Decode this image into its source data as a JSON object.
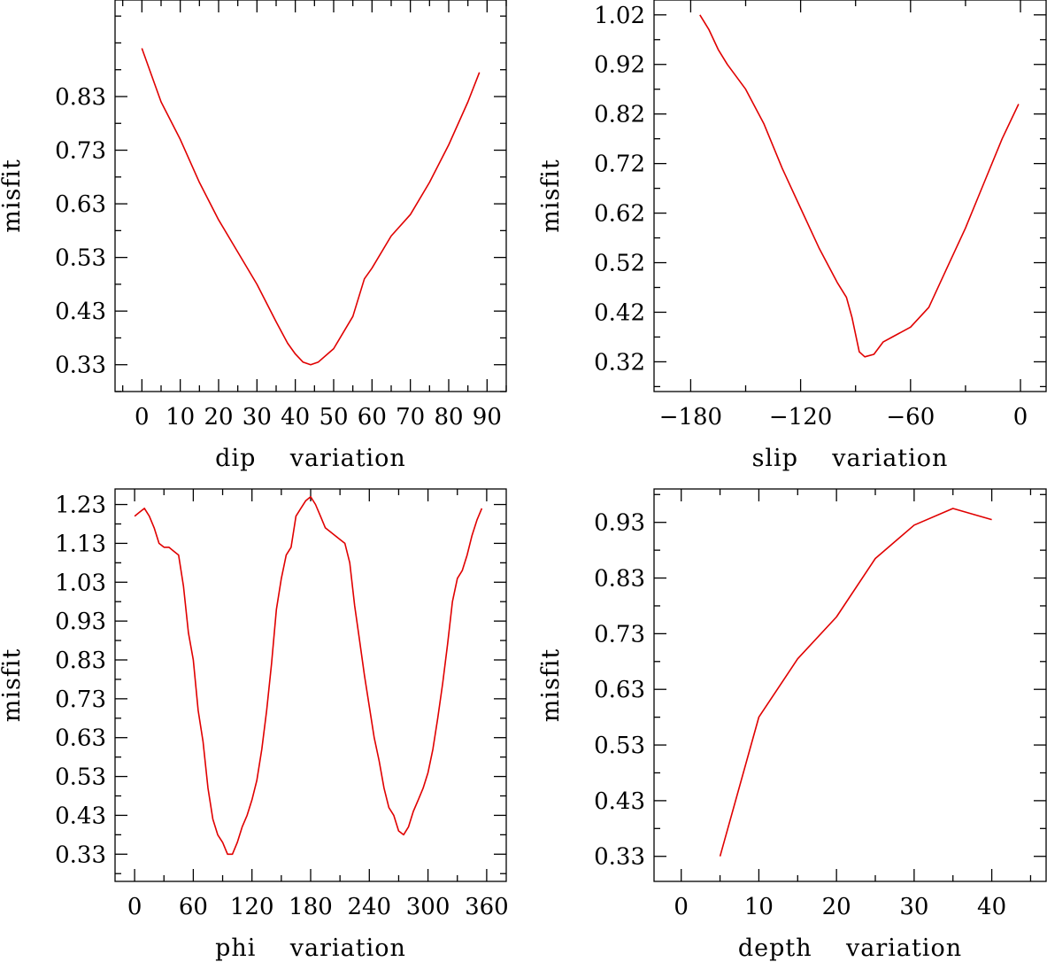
{
  "chart_data": [
    {
      "type": "line",
      "title": "",
      "xlabel": "dip    variation",
      "ylabel": "misfit",
      "xlim": [
        -7,
        95
      ],
      "ylim": [
        0.28,
        1.01
      ],
      "xticks": [
        0,
        10,
        20,
        30,
        40,
        50,
        60,
        70,
        80,
        90
      ],
      "xtick_labels": [
        "0",
        "10",
        "20",
        "30",
        "40",
        "50",
        "60",
        "70",
        "80",
        "90"
      ],
      "yticks": [
        0.33,
        0.43,
        0.53,
        0.63,
        0.73,
        0.83
      ],
      "ytick_labels": [
        "0.33",
        "0.43",
        "0.53",
        "0.63",
        "0.73",
        "0.83"
      ],
      "series": [
        {
          "name": "dip",
          "color": "#e00000",
          "x": [
            0,
            5,
            10,
            15,
            20,
            25,
            30,
            35,
            38,
            40,
            42,
            44,
            46,
            50,
            55,
            58,
            60,
            65,
            70,
            75,
            80,
            85,
            88
          ],
          "y": [
            0.92,
            0.82,
            0.75,
            0.67,
            0.6,
            0.54,
            0.48,
            0.41,
            0.37,
            0.35,
            0.335,
            0.33,
            0.335,
            0.36,
            0.42,
            0.49,
            0.51,
            0.57,
            0.61,
            0.67,
            0.74,
            0.82,
            0.875
          ]
        }
      ]
    },
    {
      "type": "line",
      "title": "",
      "xlabel": "slip    variation",
      "ylabel": "misfit",
      "xlim": [
        -200,
        14
      ],
      "ylim": [
        0.26,
        1.05
      ],
      "xticks": [
        -180,
        -120,
        -60,
        0
      ],
      "xtick_labels": [
        "−180",
        "−120",
        "−60",
        "0"
      ],
      "yticks": [
        0.32,
        0.42,
        0.52,
        0.62,
        0.72,
        0.82,
        0.92,
        1.02
      ],
      "ytick_labels": [
        "0.32",
        "0.42",
        "0.52",
        "0.62",
        "0.72",
        "0.82",
        "0.92",
        "1.02"
      ],
      "series": [
        {
          "name": "slip",
          "color": "#e00000",
          "x": [
            -175,
            -170,
            -165,
            -160,
            -150,
            -140,
            -130,
            -120,
            -110,
            -100,
            -95,
            -92,
            -88,
            -85,
            -80,
            -75,
            -70,
            -60,
            -50,
            -40,
            -30,
            -20,
            -10,
            -1
          ],
          "y": [
            1.02,
            0.99,
            0.95,
            0.92,
            0.87,
            0.8,
            0.71,
            0.63,
            0.55,
            0.48,
            0.45,
            0.41,
            0.34,
            0.33,
            0.335,
            0.36,
            0.37,
            0.39,
            0.43,
            0.51,
            0.59,
            0.68,
            0.77,
            0.84
          ]
        }
      ]
    },
    {
      "type": "line",
      "title": "",
      "xlabel": "phi    variation",
      "ylabel": "misfit",
      "xlim": [
        -20,
        380
      ],
      "ylim": [
        0.26,
        1.27
      ],
      "xticks": [
        0,
        60,
        120,
        180,
        240,
        300,
        360
      ],
      "xtick_labels": [
        "0",
        "60",
        "120",
        "180",
        "240",
        "300",
        "360"
      ],
      "yticks": [
        0.33,
        0.43,
        0.53,
        0.63,
        0.73,
        0.83,
        0.93,
        1.03,
        1.13,
        1.23
      ],
      "ytick_labels": [
        "0.33",
        "0.43",
        "0.53",
        "0.63",
        "0.73",
        "0.83",
        "0.93",
        "1.03",
        "1.13",
        "1.23"
      ],
      "series": [
        {
          "name": "phi",
          "color": "#e00000",
          "x": [
            0,
            5,
            10,
            15,
            20,
            25,
            30,
            35,
            40,
            45,
            50,
            55,
            60,
            65,
            70,
            75,
            80,
            85,
            90,
            95,
            100,
            105,
            110,
            115,
            120,
            125,
            130,
            135,
            140,
            145,
            150,
            155,
            160,
            165,
            170,
            175,
            180,
            185,
            190,
            195,
            200,
            205,
            210,
            215,
            220,
            225,
            230,
            235,
            240,
            245,
            250,
            255,
            260,
            265,
            270,
            275,
            280,
            285,
            290,
            295,
            300,
            305,
            310,
            315,
            320,
            325,
            330,
            335,
            340,
            345,
            350,
            355
          ],
          "y": [
            1.2,
            1.21,
            1.22,
            1.2,
            1.17,
            1.13,
            1.12,
            1.12,
            1.11,
            1.1,
            1.02,
            0.9,
            0.83,
            0.7,
            0.62,
            0.5,
            0.42,
            0.38,
            0.36,
            0.33,
            0.33,
            0.36,
            0.4,
            0.43,
            0.47,
            0.52,
            0.6,
            0.7,
            0.82,
            0.96,
            1.04,
            1.1,
            1.12,
            1.2,
            1.22,
            1.24,
            1.25,
            1.23,
            1.2,
            1.17,
            1.16,
            1.15,
            1.14,
            1.13,
            1.08,
            0.97,
            0.88,
            0.79,
            0.71,
            0.63,
            0.57,
            0.5,
            0.45,
            0.43,
            0.39,
            0.38,
            0.4,
            0.44,
            0.47,
            0.5,
            0.54,
            0.6,
            0.68,
            0.77,
            0.87,
            0.98,
            1.04,
            1.06,
            1.1,
            1.15,
            1.19,
            1.22
          ]
        }
      ]
    },
    {
      "type": "line",
      "title": "",
      "xlabel": "depth    variation",
      "ylabel": "misfit",
      "xlim": [
        -3.5,
        47
      ],
      "ylim": [
        0.285,
        0.99
      ],
      "xticks": [
        0,
        10,
        20,
        30,
        40
      ],
      "xtick_labels": [
        "0",
        "10",
        "20",
        "30",
        "40"
      ],
      "yticks": [
        0.33,
        0.43,
        0.53,
        0.63,
        0.73,
        0.83,
        0.93
      ],
      "ytick_labels": [
        "0.33",
        "0.43",
        "0.53",
        "0.63",
        "0.73",
        "0.83",
        "0.93"
      ],
      "series": [
        {
          "name": "depth",
          "color": "#e00000",
          "x": [
            5,
            10,
            15,
            20,
            25,
            30,
            35,
            40
          ],
          "y": [
            0.33,
            0.58,
            0.685,
            0.76,
            0.865,
            0.925,
            0.955,
            0.935
          ]
        }
      ]
    }
  ]
}
